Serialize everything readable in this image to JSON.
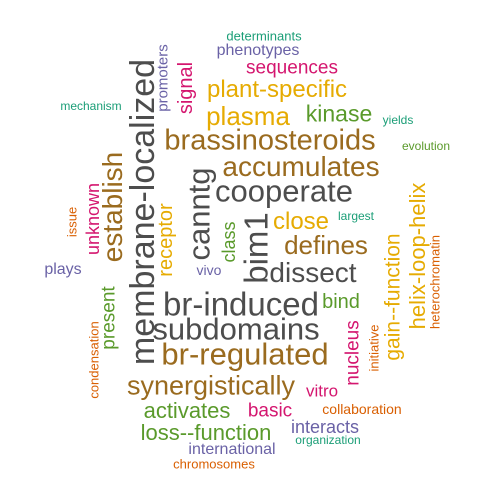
{
  "palette": {
    "brown": "#9a6b1f",
    "dark_gray": "#4d4d4d",
    "magenta": "#d4166f",
    "green": "#5a9a2b",
    "purple": "#6a62a6",
    "orange": "#d95f02",
    "teal": "#1b9e77",
    "gold": "#e6ab02"
  },
  "words": [
    {
      "text": "determinants",
      "color": "#1b9e77",
      "rotated": false
    },
    {
      "text": "phenotypes",
      "color": "#6a62a6",
      "rotated": false
    },
    {
      "text": "sequences",
      "color": "#d4166f",
      "rotated": false
    },
    {
      "text": "promoters",
      "color": "#6a62a6",
      "rotated": true
    },
    {
      "text": "signal",
      "color": "#d4166f",
      "rotated": true
    },
    {
      "text": "plant-specific",
      "color": "#e6ab02",
      "rotated": false
    },
    {
      "text": "mechanism",
      "color": "#1b9e77",
      "rotated": false
    },
    {
      "text": "kinase",
      "color": "#5a9a2b",
      "rotated": false
    },
    {
      "text": "yields",
      "color": "#1b9e77",
      "rotated": false
    },
    {
      "text": "plasma",
      "color": "#e6ab02",
      "rotated": false
    },
    {
      "text": "membrane-localized",
      "color": "#4d4d4d",
      "rotated": true
    },
    {
      "text": "brassinosteroids",
      "color": "#9a6b1f",
      "rotated": false
    },
    {
      "text": "evolution",
      "color": "#5a9a2b",
      "rotated": false
    },
    {
      "text": "establish",
      "color": "#9a6b1f",
      "rotated": true
    },
    {
      "text": "accumulates",
      "color": "#9a6b1f",
      "rotated": false
    },
    {
      "text": "helix-loop-helix",
      "color": "#e6ab02",
      "rotated": true
    },
    {
      "text": "unknown",
      "color": "#d4166f",
      "rotated": true
    },
    {
      "text": "canntg",
      "color": "#4d4d4d",
      "rotated": true
    },
    {
      "text": "cooperate",
      "color": "#4d4d4d",
      "rotated": false
    },
    {
      "text": "issue",
      "color": "#d95f02",
      "rotated": true
    },
    {
      "text": "largest",
      "color": "#1b9e77",
      "rotated": false
    },
    {
      "text": "heterochromatin",
      "color": "#d95f02",
      "rotated": true
    },
    {
      "text": "receptor",
      "color": "#e6ab02",
      "rotated": true
    },
    {
      "text": "class",
      "color": "#5a9a2b",
      "rotated": true
    },
    {
      "text": "close",
      "color": "#e6ab02",
      "rotated": false
    },
    {
      "text": "bim1",
      "color": "#4d4d4d",
      "rotated": true
    },
    {
      "text": "defines",
      "color": "#9a6b1f",
      "rotated": false
    },
    {
      "text": "gain--function",
      "color": "#e6ab02",
      "rotated": true
    },
    {
      "text": "plays",
      "color": "#6a62a6",
      "rotated": false
    },
    {
      "text": "vivo",
      "color": "#6a62a6",
      "rotated": false
    },
    {
      "text": "dissect",
      "color": "#4d4d4d",
      "rotated": false
    },
    {
      "text": "bind",
      "color": "#5a9a2b",
      "rotated": false
    },
    {
      "text": "br-induced",
      "color": "#4d4d4d",
      "rotated": false
    },
    {
      "text": "present",
      "color": "#5a9a2b",
      "rotated": true
    },
    {
      "text": "initiative",
      "color": "#d95f02",
      "rotated": true
    },
    {
      "text": "subdomains",
      "color": "#4d4d4d",
      "rotated": false
    },
    {
      "text": "nucleus",
      "color": "#d4166f",
      "rotated": true
    },
    {
      "text": "condensation",
      "color": "#d95f02",
      "rotated": true
    },
    {
      "text": "br-regulated",
      "color": "#9a6b1f",
      "rotated": false
    },
    {
      "text": "synergistically",
      "color": "#9a6b1f",
      "rotated": false
    },
    {
      "text": "vitro",
      "color": "#d4166f",
      "rotated": false
    },
    {
      "text": "activates",
      "color": "#5a9a2b",
      "rotated": false
    },
    {
      "text": "basic",
      "color": "#d4166f",
      "rotated": false
    },
    {
      "text": "collaboration",
      "color": "#d95f02",
      "rotated": false
    },
    {
      "text": "loss--function",
      "color": "#5a9a2b",
      "rotated": false
    },
    {
      "text": "interacts",
      "color": "#6a62a6",
      "rotated": false
    },
    {
      "text": "organization",
      "color": "#1b9e77",
      "rotated": false
    },
    {
      "text": "international",
      "color": "#6a62a6",
      "rotated": false
    },
    {
      "text": "chromosomes",
      "color": "#d95f02",
      "rotated": false
    }
  ]
}
